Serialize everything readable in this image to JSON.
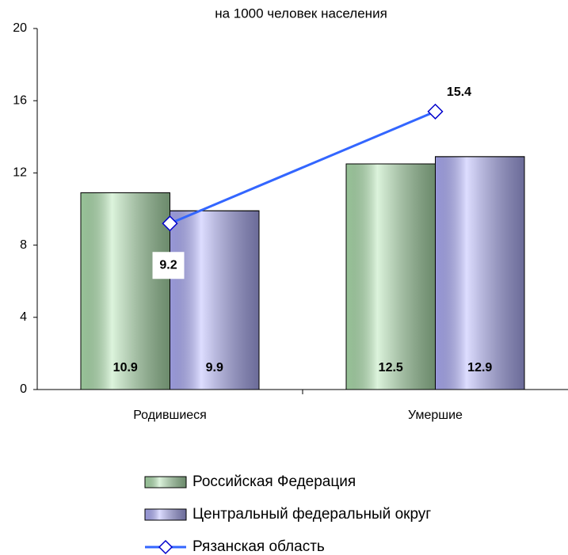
{
  "chart_data": {
    "type": "bar",
    "title": "на 1000 человек населения",
    "categories": [
      "Родившиеся",
      "Умершие"
    ],
    "series": [
      {
        "name": "Российская Федерация",
        "color": "#b3e6b3",
        "values": [
          10.9,
          12.5
        ]
      },
      {
        "name": "Центральный федеральный округ",
        "color": "#b3b3ff",
        "values": [
          9.9,
          12.9
        ]
      },
      {
        "name": "Рязанская область",
        "type": "line",
        "color": "#3366ff",
        "values": [
          9.2,
          15.4
        ]
      }
    ],
    "ylim": [
      0,
      20
    ],
    "yticks": [
      0,
      4,
      8,
      12,
      16,
      20
    ]
  }
}
